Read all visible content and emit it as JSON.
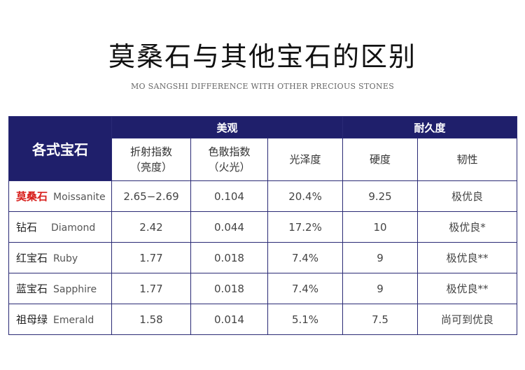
{
  "title": "莫桑石与其他宝石的区别",
  "subtitle": "MO SANGSHI DIFFERENCE WITH OTHER PRECIOUS STONES",
  "colors": {
    "header_bg": "#1f1f6b",
    "border": "#2a2a75",
    "highlight": "#d8201d"
  },
  "table": {
    "stone_header": "各式宝石",
    "group_appearance": "美观",
    "group_durability": "耐久度",
    "columns": {
      "refraction_line1": "折射指数",
      "refraction_line2": "（亮度）",
      "dispersion_line1": "色散指数",
      "dispersion_line2": "（火光）",
      "luster": "光泽度",
      "hardness": "硬度",
      "toughness": "韧性"
    },
    "rows": [
      {
        "cn": "莫桑石",
        "en": "Moissanite",
        "refraction": "2.65−2.69",
        "dispersion": "0.104",
        "luster": "20.4%",
        "hardness": "9.25",
        "toughness": "极优良"
      },
      {
        "cn": "钻石",
        "en": "Diamond",
        "refraction": "2.42",
        "dispersion": "0.044",
        "luster": "17.2%",
        "hardness": "10",
        "toughness": "极优良*"
      },
      {
        "cn": "红宝石",
        "en": "Ruby",
        "refraction": "1.77",
        "dispersion": "0.018",
        "luster": "7.4%",
        "hardness": "9",
        "toughness": "极优良**"
      },
      {
        "cn": "蓝宝石",
        "en": "Sapphire",
        "refraction": "1.77",
        "dispersion": "0.018",
        "luster": "7.4%",
        "hardness": "9",
        "toughness": "极优良**"
      },
      {
        "cn": "祖母绿",
        "en": "Emerald",
        "refraction": "1.58",
        "dispersion": "0.014",
        "luster": "5.1%",
        "hardness": "7.5",
        "toughness": "尚可到优良"
      }
    ]
  }
}
